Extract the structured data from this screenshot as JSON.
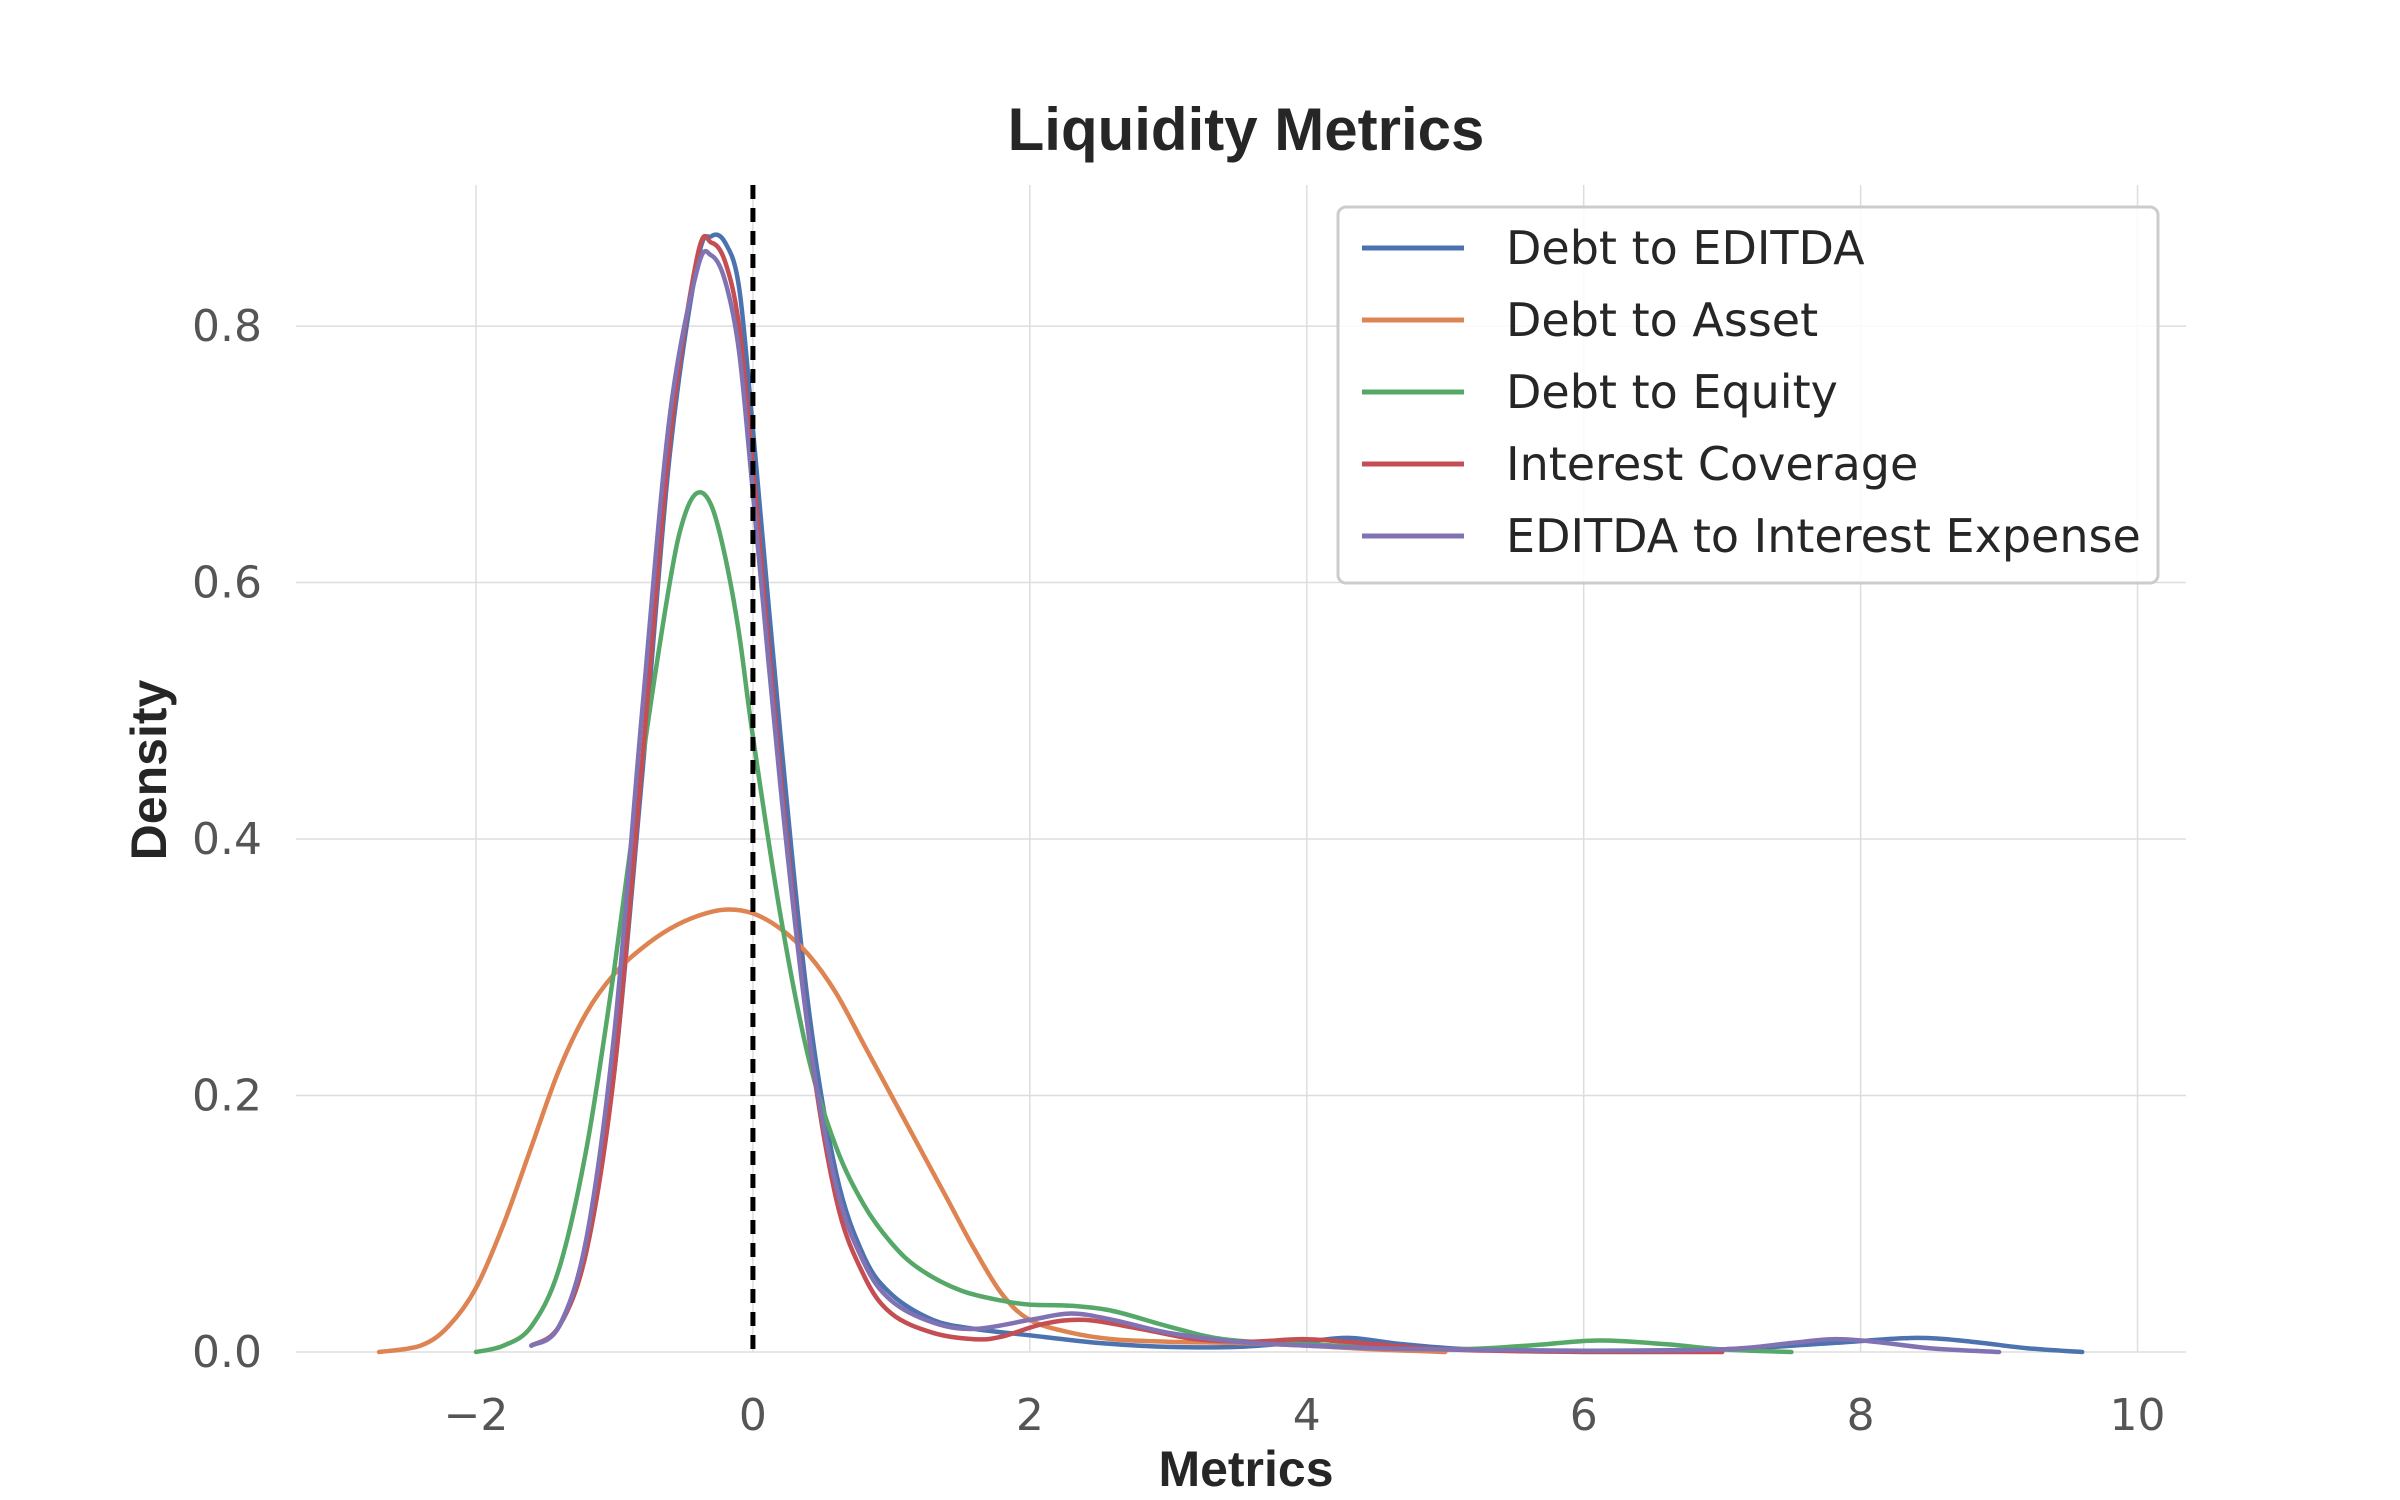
{
  "chart_data": {
    "type": "line",
    "title": "Liquidity Metrics",
    "xlabel": "Metrics",
    "ylabel": "Density",
    "xlim": [
      -3.3,
      10.35
    ],
    "ylim": [
      0,
      0.91
    ],
    "xticks": [
      -2,
      0,
      2,
      4,
      6,
      8,
      10
    ],
    "xtick_labels": [
      "−2",
      "0",
      "2",
      "4",
      "6",
      "8",
      "10"
    ],
    "yticks": [
      0.0,
      0.2,
      0.4,
      0.6,
      0.8
    ],
    "ytick_labels": [
      "0.0",
      "0.2",
      "0.4",
      "0.6",
      "0.8"
    ],
    "grid": true,
    "legend_position": "top-right",
    "reference_line": {
      "x": 0,
      "style": "dashed",
      "color": "#000000"
    },
    "series": [
      {
        "name": "Debt to EDITDA",
        "color": "#4c72b0",
        "x": [
          -1.6,
          -1.4,
          -1.2,
          -1.0,
          -0.8,
          -0.6,
          -0.4,
          -0.3,
          -0.2,
          -0.1,
          0.0,
          0.2,
          0.4,
          0.6,
          0.8,
          1.0,
          1.3,
          1.6,
          2.0,
          2.5,
          3.0,
          3.5,
          4.0,
          4.3,
          4.7,
          5.2,
          6.0,
          7.0,
          7.8,
          8.4,
          8.8,
          9.2,
          9.6
        ],
        "y": [
          0.005,
          0.02,
          0.08,
          0.22,
          0.45,
          0.7,
          0.85,
          0.87,
          0.865,
          0.83,
          0.72,
          0.48,
          0.27,
          0.14,
          0.075,
          0.045,
          0.025,
          0.018,
          0.013,
          0.007,
          0.004,
          0.004,
          0.008,
          0.011,
          0.006,
          0.002,
          0.001,
          0.002,
          0.007,
          0.011,
          0.008,
          0.003,
          0.0
        ]
      },
      {
        "name": "Debt to Asset",
        "color": "#dd8452",
        "x": [
          -2.7,
          -2.4,
          -2.2,
          -2.0,
          -1.8,
          -1.6,
          -1.4,
          -1.2,
          -1.0,
          -0.8,
          -0.6,
          -0.4,
          -0.2,
          0.0,
          0.2,
          0.4,
          0.6,
          0.8,
          1.0,
          1.2,
          1.4,
          1.6,
          1.8,
          2.0,
          2.3,
          2.6,
          3.0,
          3.5,
          4.0,
          4.5,
          5.0
        ],
        "y": [
          0.0,
          0.005,
          0.02,
          0.05,
          0.1,
          0.16,
          0.22,
          0.265,
          0.295,
          0.315,
          0.33,
          0.34,
          0.345,
          0.342,
          0.33,
          0.31,
          0.28,
          0.24,
          0.2,
          0.16,
          0.12,
          0.08,
          0.045,
          0.025,
          0.015,
          0.01,
          0.008,
          0.007,
          0.005,
          0.002,
          0.0
        ]
      },
      {
        "name": "Debt to Equity",
        "color": "#55a868",
        "x": [
          -2.0,
          -1.8,
          -1.6,
          -1.4,
          -1.2,
          -1.0,
          -0.8,
          -0.6,
          -0.5,
          -0.4,
          -0.3,
          -0.2,
          -0.1,
          0.0,
          0.2,
          0.4,
          0.6,
          0.8,
          1.0,
          1.2,
          1.5,
          1.8,
          2.0,
          2.3,
          2.6,
          3.0,
          3.4,
          4.0,
          5.0,
          5.6,
          6.1,
          6.6,
          7.0,
          7.5
        ],
        "y": [
          0.0,
          0.005,
          0.02,
          0.065,
          0.16,
          0.3,
          0.46,
          0.6,
          0.65,
          0.67,
          0.66,
          0.62,
          0.56,
          0.48,
          0.34,
          0.23,
          0.16,
          0.115,
          0.085,
          0.065,
          0.048,
          0.04,
          0.037,
          0.036,
          0.032,
          0.02,
          0.01,
          0.006,
          0.002,
          0.005,
          0.009,
          0.006,
          0.002,
          0.0
        ]
      },
      {
        "name": "Interest Coverage",
        "color": "#c44e52",
        "x": [
          -1.6,
          -1.4,
          -1.2,
          -1.0,
          -0.8,
          -0.6,
          -0.4,
          -0.3,
          -0.2,
          -0.1,
          0.0,
          0.2,
          0.4,
          0.6,
          0.8,
          1.0,
          1.3,
          1.6,
          1.8,
          2.1,
          2.4,
          2.8,
          3.2,
          3.6,
          4.0,
          4.5,
          5.0,
          6.0,
          7.0
        ],
        "y": [
          0.005,
          0.02,
          0.08,
          0.22,
          0.46,
          0.71,
          0.855,
          0.865,
          0.85,
          0.8,
          0.69,
          0.45,
          0.25,
          0.12,
          0.06,
          0.03,
          0.015,
          0.01,
          0.012,
          0.022,
          0.025,
          0.018,
          0.01,
          0.008,
          0.01,
          0.006,
          0.002,
          0.0,
          0.0
        ]
      },
      {
        "name": "EDITDA to Interest Expense",
        "color": "#8172b3",
        "x": [
          -1.6,
          -1.4,
          -1.2,
          -1.0,
          -0.8,
          -0.6,
          -0.4,
          -0.3,
          -0.2,
          -0.1,
          0.0,
          0.2,
          0.4,
          0.6,
          0.8,
          1.0,
          1.3,
          1.6,
          2.0,
          2.3,
          2.6,
          3.0,
          3.5,
          4.0,
          4.5,
          5.0,
          6.0,
          7.0,
          7.5,
          7.8,
          8.1,
          8.5,
          9.0
        ],
        "y": [
          0.005,
          0.02,
          0.09,
          0.25,
          0.5,
          0.73,
          0.845,
          0.855,
          0.835,
          0.78,
          0.67,
          0.44,
          0.25,
          0.13,
          0.07,
          0.04,
          0.023,
          0.018,
          0.025,
          0.03,
          0.025,
          0.015,
          0.008,
          0.005,
          0.003,
          0.002,
          0.001,
          0.002,
          0.007,
          0.01,
          0.008,
          0.003,
          0.0
        ]
      }
    ]
  }
}
